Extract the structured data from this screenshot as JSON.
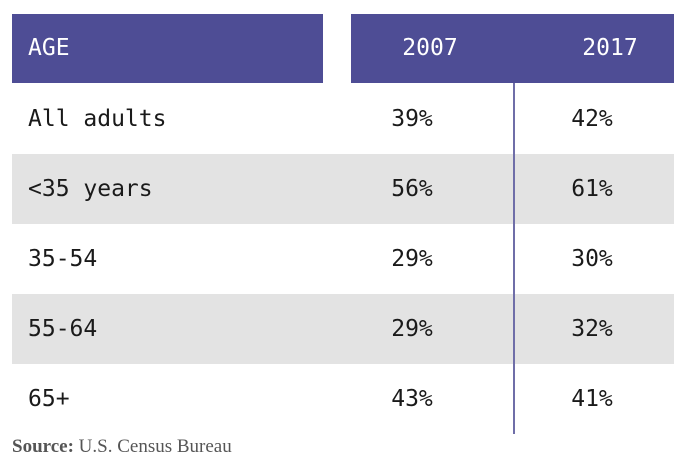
{
  "chart_data": {
    "type": "table",
    "columns": [
      "AGE",
      "2007",
      "2017"
    ],
    "rows": [
      {
        "label": "All adults",
        "v2007": "39%",
        "v2017": "42%"
      },
      {
        "label": "<35 years",
        "v2007": "56%",
        "v2017": "61%"
      },
      {
        "label": "35-54",
        "v2007": "29%",
        "v2017": "30%"
      },
      {
        "label": "55-64",
        "v2007": "29%",
        "v2017": "32%"
      },
      {
        "label": "65+",
        "v2007": "43%",
        "v2017": "41%"
      }
    ],
    "source_label": "Source:",
    "source_text": "U.S. Census Bureau"
  },
  "colors": {
    "header_bg": "#4e4d95",
    "stripe_bg": "#e3e3e3",
    "divider": "#6f6ea8"
  }
}
